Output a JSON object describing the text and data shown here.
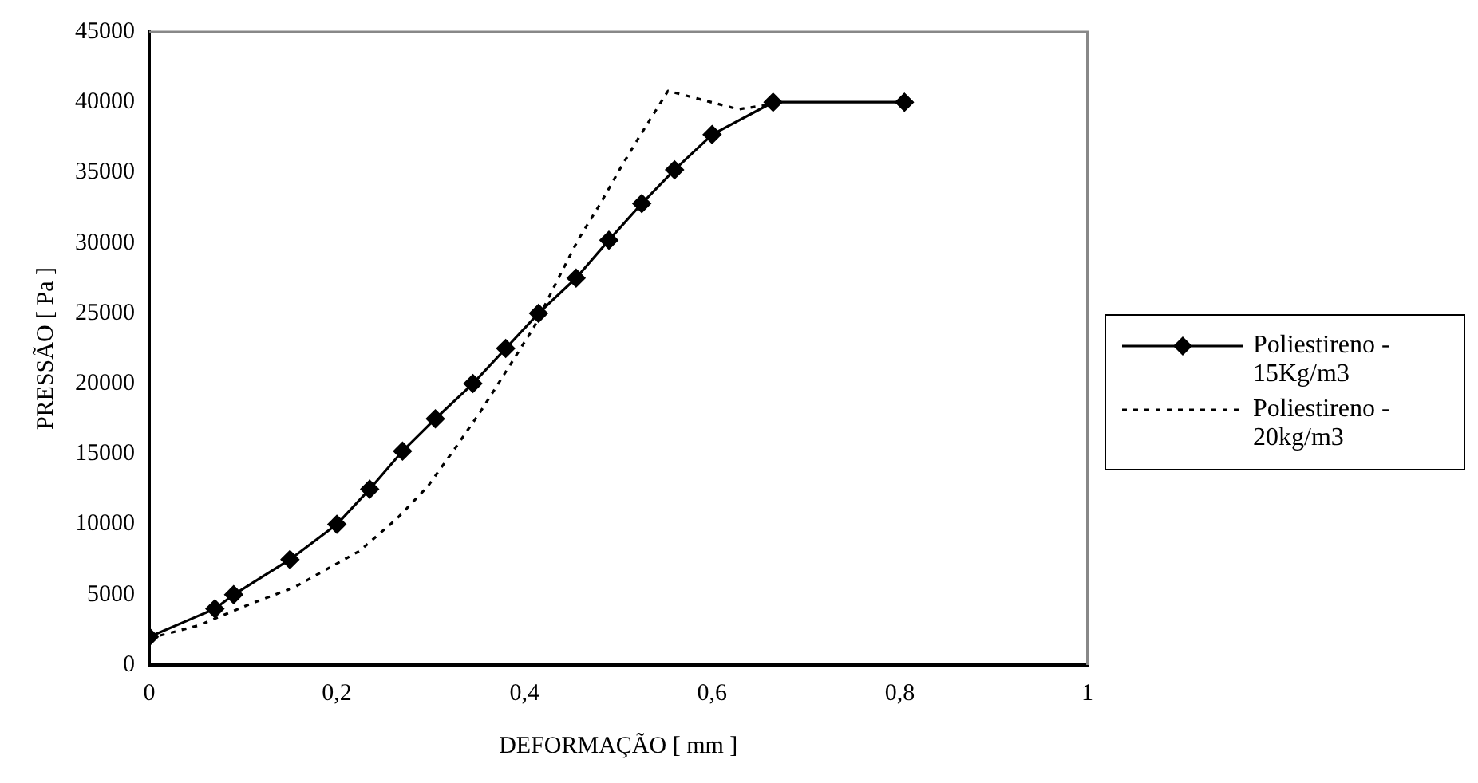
{
  "chart_data": {
    "type": "line",
    "xlabel": "DEFORMAÇÃO [ mm ]",
    "ylabel": "PRESSÃO [ Pa ]",
    "xlim": [
      0,
      1
    ],
    "xticks": [
      0,
      {
        "value": 0.2,
        "label": "0,2"
      },
      {
        "value": 0.4,
        "label": "0,4"
      },
      {
        "value": 0.6,
        "label": "0,6"
      },
      {
        "value": 0.8,
        "label": "0,8"
      },
      1
    ],
    "ylim": [
      0,
      45000
    ],
    "yticks": [
      0,
      5000,
      10000,
      15000,
      20000,
      25000,
      30000,
      35000,
      40000,
      45000
    ],
    "grid": false,
    "legend": "right",
    "series": [
      {
        "name": "Poliestireno - 15Kg/m3",
        "color": "#000000",
        "marker": "diamond",
        "line_style": "solid",
        "x": [
          0,
          0.07,
          0.09,
          0.15,
          0.2,
          0.235,
          0.27,
          0.305,
          0.345,
          0.38,
          0.415,
          0.455,
          0.49,
          0.525,
          0.56,
          0.6,
          0.665,
          0.805
        ],
        "values": [
          2000,
          4000,
          5000,
          7500,
          10000,
          12500,
          15200,
          17500,
          20000,
          22500,
          25000,
          27500,
          30200,
          32800,
          35200,
          37700,
          40000,
          40000
        ]
      },
      {
        "name": "Poliestireno - 20kg/m3",
        "color": "#000000",
        "marker": "none",
        "line_style": "dotted",
        "x": [
          0,
          0.052,
          0.11,
          0.154,
          0.224,
          0.264,
          0.297,
          0.326,
          0.354,
          0.374,
          0.41,
          0.437,
          0.457,
          0.48,
          0.503,
          0.522,
          0.553,
          0.628,
          0.659
        ],
        "values": [
          1900,
          2800,
          4400,
          5500,
          8100,
          10400,
          12700,
          15400,
          18100,
          20200,
          24000,
          27600,
          30200,
          32700,
          35400,
          37500,
          40800,
          39500,
          39800
        ]
      }
    ]
  }
}
